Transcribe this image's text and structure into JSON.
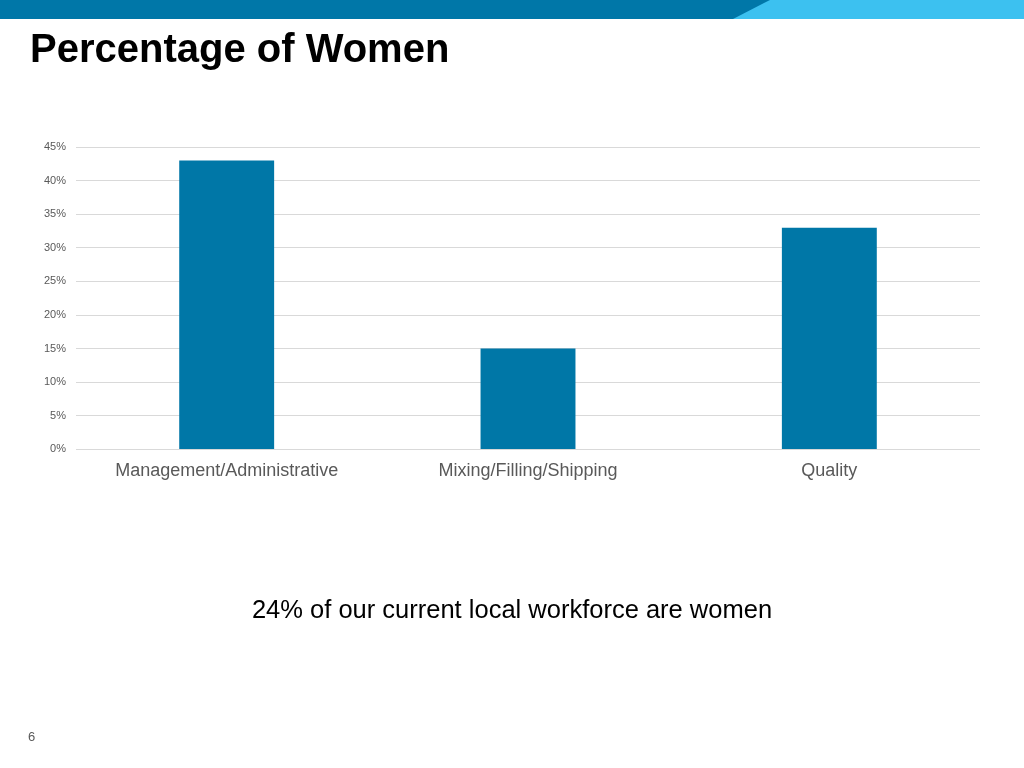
{
  "chart_data": {
    "type": "bar",
    "title": "Percentage of Women",
    "categories": [
      "Management/Administrative",
      "Mixing/Filling/Shipping",
      "Quality"
    ],
    "values": [
      43,
      15,
      33
    ],
    "color": "#0077a7",
    "ylim": [
      0,
      45
    ],
    "yticks": [
      {
        "value": 0,
        "label": "0%"
      },
      {
        "value": 5,
        "label": "5%"
      },
      {
        "value": 10,
        "label": "10%"
      },
      {
        "value": 15,
        "label": "15%"
      },
      {
        "value": 20,
        "label": "20%"
      },
      {
        "value": 25,
        "label": "25%"
      },
      {
        "value": 30,
        "label": "30%"
      },
      {
        "value": 35,
        "label": "35%"
      },
      {
        "value": 40,
        "label": "40%"
      },
      {
        "value": 45,
        "label": "45%"
      }
    ],
    "grid": "y",
    "annotations": [
      "24% of our current local workforce are women",
      "6"
    ]
  }
}
